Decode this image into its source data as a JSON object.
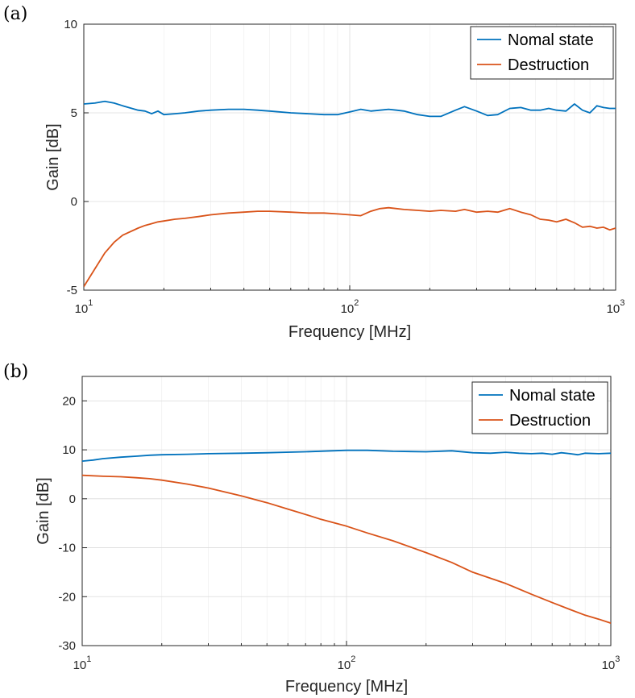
{
  "colors": {
    "nominal": "#0072BD",
    "destruction": "#D95319"
  },
  "chart_data": [
    {
      "panel_label": "(a)",
      "type": "line",
      "xscale": "log",
      "xlim": [
        10,
        1000
      ],
      "ylim": [
        -5,
        10
      ],
      "yticks": [
        -5,
        0,
        5,
        10
      ],
      "xticks": [
        {
          "base": "10",
          "exp": "1",
          "value": 10
        },
        {
          "base": "10",
          "exp": "2",
          "value": 100
        },
        {
          "base": "10",
          "exp": "3",
          "value": 1000
        }
      ],
      "xlabel": "Frequency [MHz]",
      "ylabel": "Gain [dB]",
      "grid": true,
      "legend": "top-right",
      "series": [
        {
          "name": "Nomal state",
          "color": "#0072BD",
          "x": [
            10,
            11,
            12,
            13,
            14,
            16,
            17,
            18,
            19,
            20,
            22,
            24,
            27,
            30,
            35,
            40,
            45,
            50,
            60,
            70,
            80,
            90,
            100,
            110,
            120,
            130,
            140,
            150,
            160,
            180,
            200,
            220,
            250,
            270,
            300,
            330,
            360,
            400,
            440,
            480,
            520,
            560,
            600,
            650,
            700,
            750,
            800,
            850,
            900,
            950,
            1000
          ],
          "y": [
            5.5,
            5.55,
            5.65,
            5.55,
            5.4,
            5.15,
            5.1,
            4.95,
            5.1,
            4.9,
            4.95,
            5.0,
            5.1,
            5.15,
            5.2,
            5.2,
            5.15,
            5.1,
            5.0,
            4.95,
            4.9,
            4.9,
            5.05,
            5.2,
            5.1,
            5.15,
            5.2,
            5.15,
            5.1,
            4.9,
            4.8,
            4.8,
            5.15,
            5.35,
            5.1,
            4.85,
            4.9,
            5.25,
            5.3,
            5.15,
            5.15,
            5.25,
            5.15,
            5.1,
            5.5,
            5.15,
            5.0,
            5.4,
            5.3,
            5.25,
            5.25
          ]
        },
        {
          "name": "Destruction",
          "color": "#D95319",
          "x": [
            10,
            11,
            12,
            13,
            14,
            16,
            17,
            18,
            19,
            20,
            22,
            24,
            27,
            30,
            35,
            40,
            45,
            50,
            60,
            70,
            80,
            90,
            100,
            110,
            120,
            130,
            140,
            150,
            160,
            180,
            200,
            220,
            250,
            270,
            300,
            330,
            360,
            400,
            440,
            480,
            520,
            560,
            600,
            650,
            700,
            750,
            800,
            850,
            900,
            950,
            1000
          ],
          "y": [
            -4.8,
            -3.8,
            -2.9,
            -2.3,
            -1.9,
            -1.5,
            -1.35,
            -1.25,
            -1.15,
            -1.1,
            -1.0,
            -0.95,
            -0.85,
            -0.75,
            -0.65,
            -0.6,
            -0.55,
            -0.55,
            -0.6,
            -0.65,
            -0.65,
            -0.7,
            -0.75,
            -0.8,
            -0.55,
            -0.4,
            -0.35,
            -0.4,
            -0.45,
            -0.5,
            -0.55,
            -0.5,
            -0.55,
            -0.45,
            -0.6,
            -0.55,
            -0.6,
            -0.4,
            -0.6,
            -0.75,
            -1.0,
            -1.05,
            -1.15,
            -1.0,
            -1.2,
            -1.45,
            -1.4,
            -1.5,
            -1.45,
            -1.6,
            -1.5
          ]
        }
      ]
    },
    {
      "panel_label": "(b)",
      "type": "line",
      "xscale": "log",
      "xlim": [
        10,
        1000
      ],
      "ylim": [
        -30,
        25
      ],
      "yticks": [
        -30,
        -20,
        -10,
        0,
        10,
        20
      ],
      "xticks": [
        {
          "base": "10",
          "exp": "1",
          "value": 10
        },
        {
          "base": "10",
          "exp": "2",
          "value": 100
        },
        {
          "base": "10",
          "exp": "3",
          "value": 1000
        }
      ],
      "xlabel": "Frequency [MHz]",
      "ylabel": "Gain [dB]",
      "grid": true,
      "legend": "top-right",
      "series": [
        {
          "name": "Nomal state",
          "color": "#0072BD",
          "x": [
            10,
            11,
            12,
            14,
            16,
            18,
            20,
            25,
            30,
            40,
            50,
            70,
            100,
            120,
            150,
            200,
            250,
            300,
            350,
            400,
            450,
            500,
            550,
            600,
            650,
            700,
            750,
            800,
            900,
            1000
          ],
          "y": [
            7.7,
            7.9,
            8.2,
            8.5,
            8.7,
            8.9,
            9.0,
            9.1,
            9.2,
            9.3,
            9.4,
            9.6,
            9.9,
            9.9,
            9.7,
            9.6,
            9.8,
            9.4,
            9.3,
            9.5,
            9.3,
            9.2,
            9.3,
            9.1,
            9.4,
            9.2,
            9.0,
            9.3,
            9.2,
            9.3
          ]
        },
        {
          "name": "Destruction",
          "color": "#D95319",
          "x": [
            10,
            12,
            14,
            16,
            18,
            20,
            25,
            30,
            40,
            50,
            60,
            70,
            80,
            100,
            120,
            150,
            200,
            250,
            300,
            400,
            500,
            600,
            700,
            800,
            900,
            1000
          ],
          "y": [
            4.8,
            4.6,
            4.5,
            4.3,
            4.1,
            3.8,
            3.0,
            2.2,
            0.6,
            -0.8,
            -2.1,
            -3.2,
            -4.2,
            -5.6,
            -7.0,
            -8.6,
            -11.0,
            -13.0,
            -15.0,
            -17.3,
            -19.5,
            -21.2,
            -22.6,
            -23.8,
            -24.6,
            -25.4
          ]
        }
      ]
    }
  ]
}
